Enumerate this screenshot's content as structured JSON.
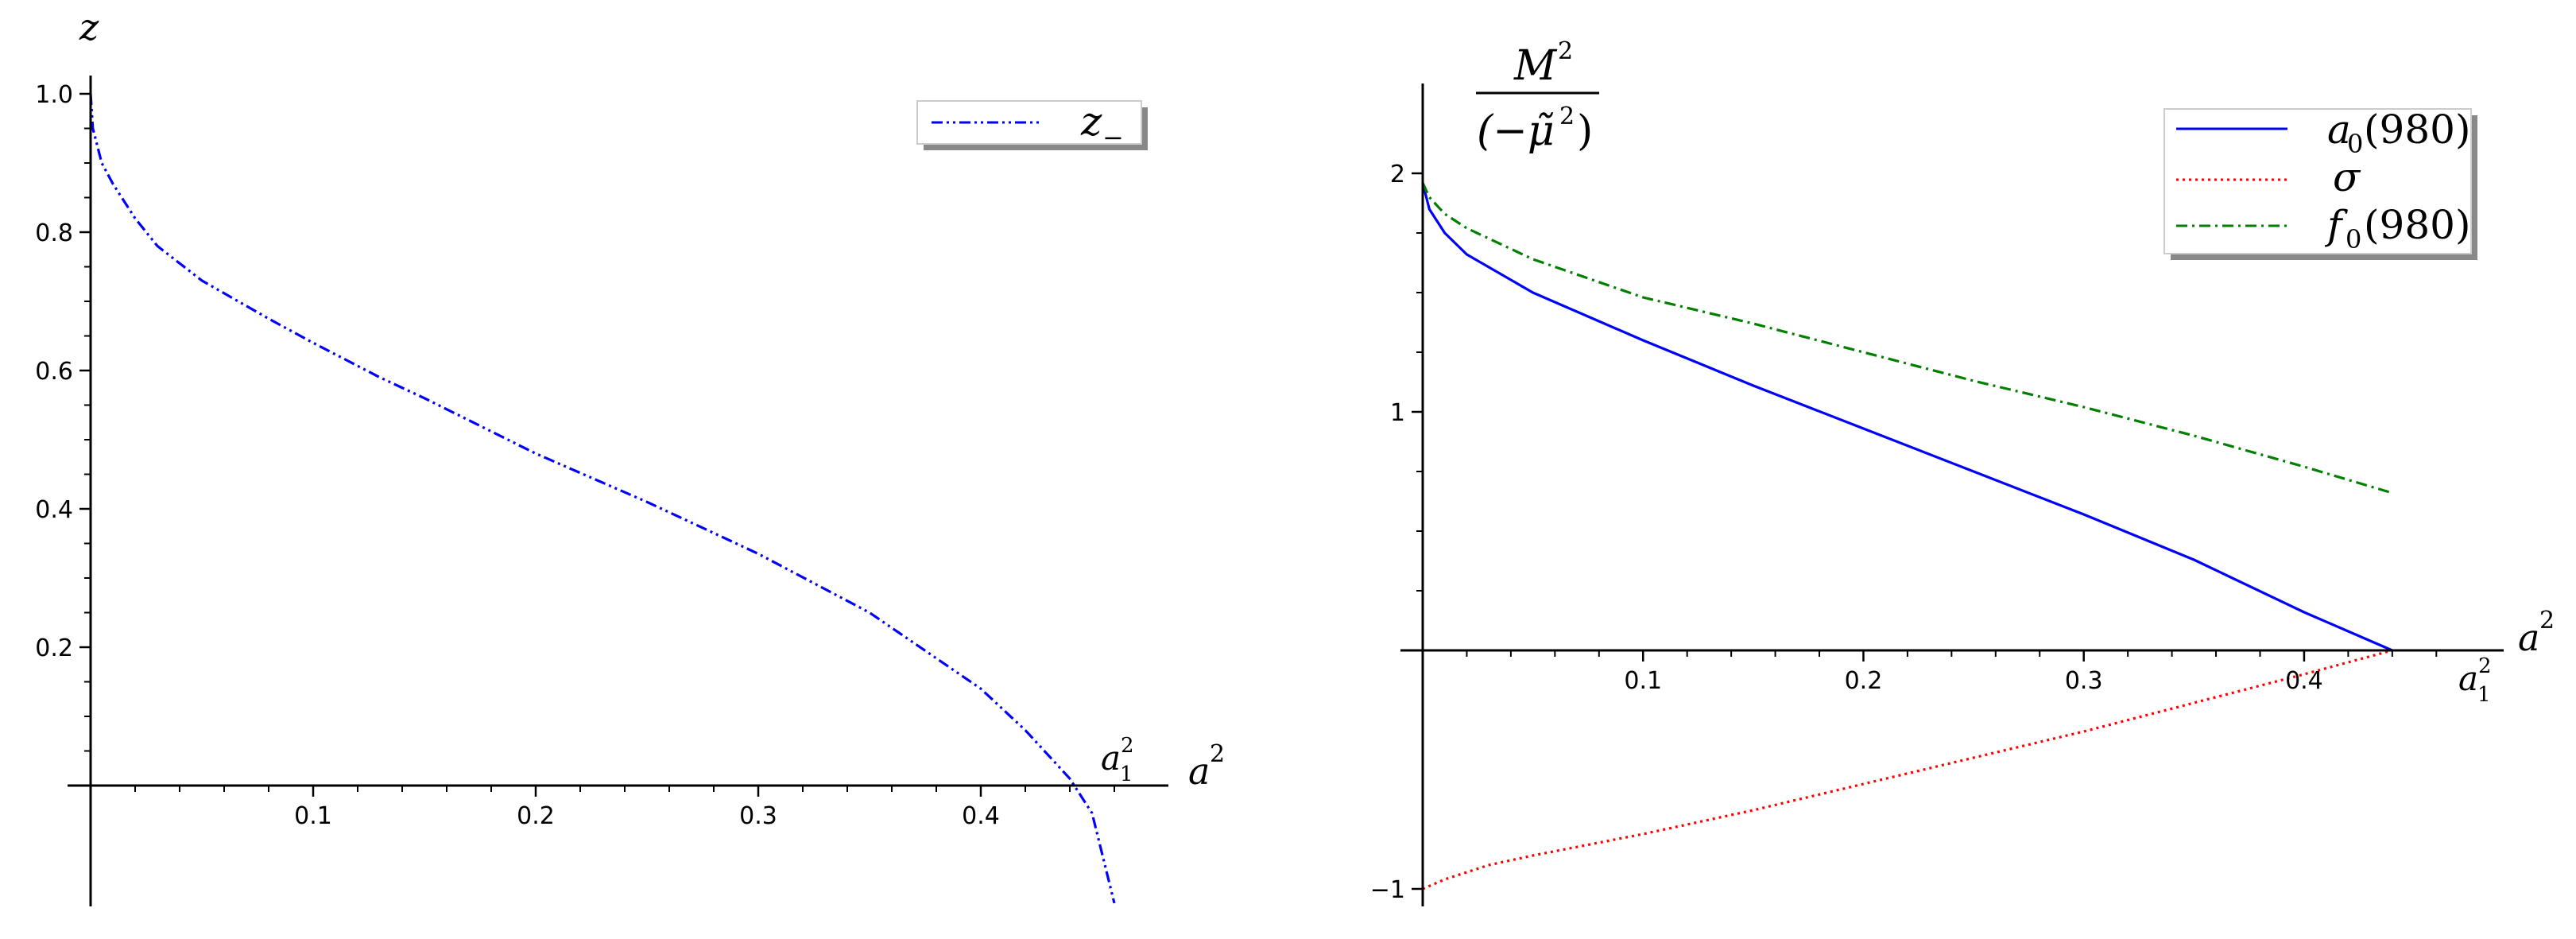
{
  "chart_data": [
    {
      "type": "line",
      "xlabel": "a",
      "xlabel_sup": "2",
      "ylabel": "z",
      "xlim": [
        0,
        0.47
      ],
      "ylim": [
        -0.2,
        1.06
      ],
      "xticks": [
        0.1,
        0.2,
        0.3,
        0.4
      ],
      "xtick_labels": [
        "0.1",
        "0.2",
        "0.3",
        "0.4"
      ],
      "yticks": [
        0.2,
        0.4,
        0.6,
        0.8,
        1.0
      ],
      "ytick_labels": [
        "0.2",
        "0.4",
        "0.6",
        "0.8",
        "1.0"
      ],
      "grid": false,
      "legend_position": "top-right",
      "annotations": [
        {
          "text": "a",
          "sub": "1",
          "sup": "2",
          "x": 0.443,
          "y": 0
        }
      ],
      "series": [
        {
          "name": "z",
          "name_sub": "−",
          "color": "#0000ff",
          "style": "dashdotdot",
          "x": [
            0.0,
            0.001,
            0.005,
            0.01,
            0.02,
            0.03,
            0.05,
            0.08,
            0.1,
            0.13,
            0.15,
            0.2,
            0.25,
            0.3,
            0.35,
            0.4,
            0.42,
            0.44,
            0.45,
            0.46
          ],
          "y": [
            1.0,
            0.95,
            0.9,
            0.87,
            0.82,
            0.78,
            0.73,
            0.675,
            0.64,
            0.59,
            0.56,
            0.48,
            0.41,
            0.335,
            0.25,
            0.14,
            0.08,
            0.01,
            -0.04,
            -0.17
          ]
        }
      ]
    },
    {
      "type": "line",
      "xlabel": "a",
      "xlabel_sup": "2",
      "ylabel_num": "M",
      "ylabel_num_sup": "2",
      "ylabel_den": "(−μ̃",
      "ylabel_den_sup": "2",
      "ylabel_den_close": ")",
      "xlim": [
        0,
        0.47
      ],
      "ylim": [
        -1.05,
        2.4
      ],
      "xticks": [
        0.1,
        0.2,
        0.3,
        0.4
      ],
      "xtick_labels": [
        "0.1",
        "0.2",
        "0.3",
        "0.4"
      ],
      "yticks": [
        -1,
        1,
        2
      ],
      "ytick_labels": [
        "−1",
        "1",
        "2"
      ],
      "grid": false,
      "legend_position": "top-right",
      "annotations": [
        {
          "text": "a",
          "sub": "1",
          "sup": "2",
          "x": 0.443,
          "y": 0
        }
      ],
      "series": [
        {
          "name": "a",
          "name_sub": "0",
          "name_tail": "(980)",
          "color": "#0000ff",
          "style": "solid",
          "x": [
            0.0,
            0.003,
            0.01,
            0.02,
            0.05,
            0.1,
            0.15,
            0.2,
            0.25,
            0.3,
            0.35,
            0.4,
            0.42,
            0.44
          ],
          "y": [
            1.96,
            1.85,
            1.75,
            1.66,
            1.5,
            1.3,
            1.11,
            0.93,
            0.75,
            0.57,
            0.38,
            0.16,
            0.08,
            0.0
          ]
        },
        {
          "name": "σ",
          "color": "#ff0000",
          "style": "dotted",
          "x": [
            0.0,
            0.01,
            0.03,
            0.05,
            0.1,
            0.15,
            0.2,
            0.25,
            0.3,
            0.35,
            0.4,
            0.44
          ],
          "y": [
            -1.0,
            -0.96,
            -0.9,
            -0.86,
            -0.77,
            -0.67,
            -0.56,
            -0.45,
            -0.34,
            -0.22,
            -0.1,
            0.0
          ]
        },
        {
          "name": "f",
          "name_sub": "0",
          "name_tail": "(980)",
          "color": "#007f00",
          "style": "dashdot",
          "x": [
            0.0,
            0.003,
            0.01,
            0.02,
            0.05,
            0.1,
            0.15,
            0.2,
            0.25,
            0.3,
            0.35,
            0.4,
            0.44
          ],
          "y": [
            1.96,
            1.9,
            1.83,
            1.77,
            1.64,
            1.48,
            1.37,
            1.25,
            1.13,
            1.02,
            0.9,
            0.77,
            0.66
          ]
        }
      ]
    }
  ]
}
